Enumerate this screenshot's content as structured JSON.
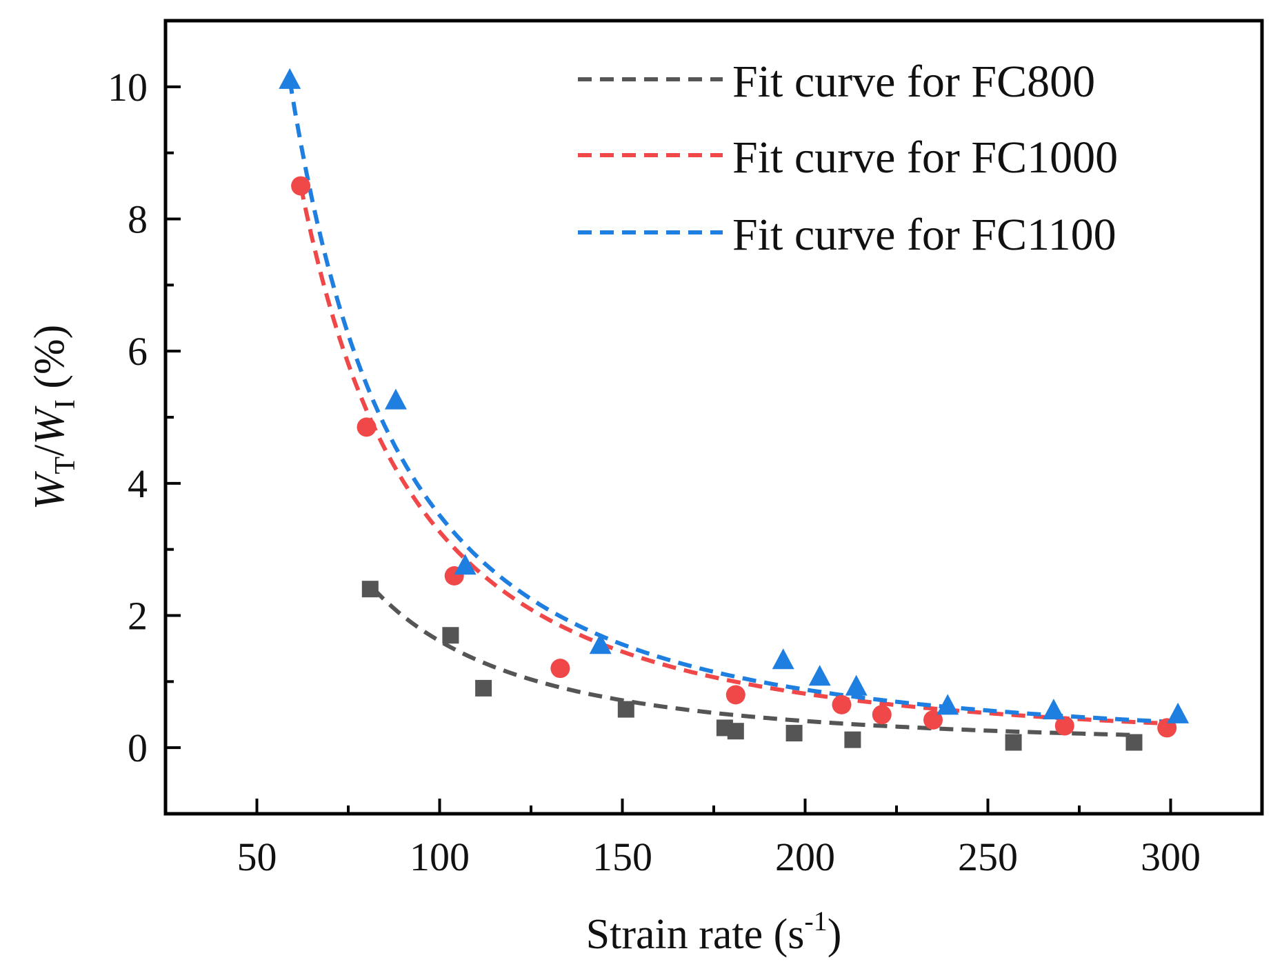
{
  "chart_data": {
    "type": "scatter",
    "title": "",
    "xlabel": "Strain rate (s-1)",
    "xlabel_parts": {
      "main": "Strain rate (s",
      "sup": "-1",
      "close": ")"
    },
    "ylabel": "WT/WI (%)",
    "ylabel_parts": {
      "w1": "W",
      "sub1": "T",
      "slash": "/",
      "w2": "W",
      "sub2": "I",
      "unit": " (%)"
    },
    "xlim": [
      25,
      325
    ],
    "ylim": [
      -1,
      11
    ],
    "x_ticks": [
      50,
      100,
      150,
      200,
      250,
      300
    ],
    "x_tick_labels": [
      "50",
      "100",
      "150",
      "200",
      "250",
      "300"
    ],
    "x_minor_ticks": [
      75,
      125,
      175,
      225,
      275
    ],
    "y_ticks": [
      0,
      2,
      4,
      6,
      8,
      10
    ],
    "y_tick_labels": [
      "0",
      "2",
      "4",
      "6",
      "8",
      "10"
    ],
    "y_minor_ticks": [
      1,
      3,
      5,
      7,
      9
    ],
    "legend_position": "top-right",
    "series": [
      {
        "name": "FC800",
        "legend": "Fit curve for FC800",
        "color": "#555555",
        "marker": "square",
        "points": [
          [
            81,
            2.4
          ],
          [
            103,
            1.7
          ],
          [
            112,
            0.9
          ],
          [
            151,
            0.58
          ],
          [
            178,
            0.3
          ],
          [
            181,
            0.25
          ],
          [
            197,
            0.22
          ],
          [
            213,
            0.12
          ],
          [
            257,
            0.08
          ],
          [
            290,
            0.08
          ]
        ],
        "fit": {
          "a": 16130,
          "b": 2.0,
          "x_range": [
            82,
            290
          ]
        }
      },
      {
        "name": "FC1000",
        "legend": "Fit curve for FC1000",
        "color": "#f04848",
        "marker": "circle",
        "points": [
          [
            62,
            8.5
          ],
          [
            80,
            4.85
          ],
          [
            104,
            2.6
          ],
          [
            133,
            1.2
          ],
          [
            181,
            0.8
          ],
          [
            210,
            0.65
          ],
          [
            221,
            0.5
          ],
          [
            235,
            0.42
          ],
          [
            271,
            0.33
          ],
          [
            299,
            0.3
          ]
        ],
        "fit": {
          "a": 32670,
          "b": 2.0,
          "x_range": [
            62,
            299
          ]
        }
      },
      {
        "name": "FC1100",
        "legend": "Fit curve for FC1100",
        "color": "#1f7fe0",
        "marker": "triangle",
        "points": [
          [
            59,
            10.1
          ],
          [
            88,
            5.25
          ],
          [
            107,
            2.75
          ],
          [
            144,
            1.55
          ],
          [
            194,
            1.32
          ],
          [
            204,
            1.07
          ],
          [
            214,
            0.92
          ],
          [
            239,
            0.63
          ],
          [
            268,
            0.56
          ],
          [
            302,
            0.5
          ]
        ],
        "fit": {
          "a": 35160,
          "b": 2.0,
          "x_range": [
            59,
            302
          ]
        }
      }
    ]
  }
}
